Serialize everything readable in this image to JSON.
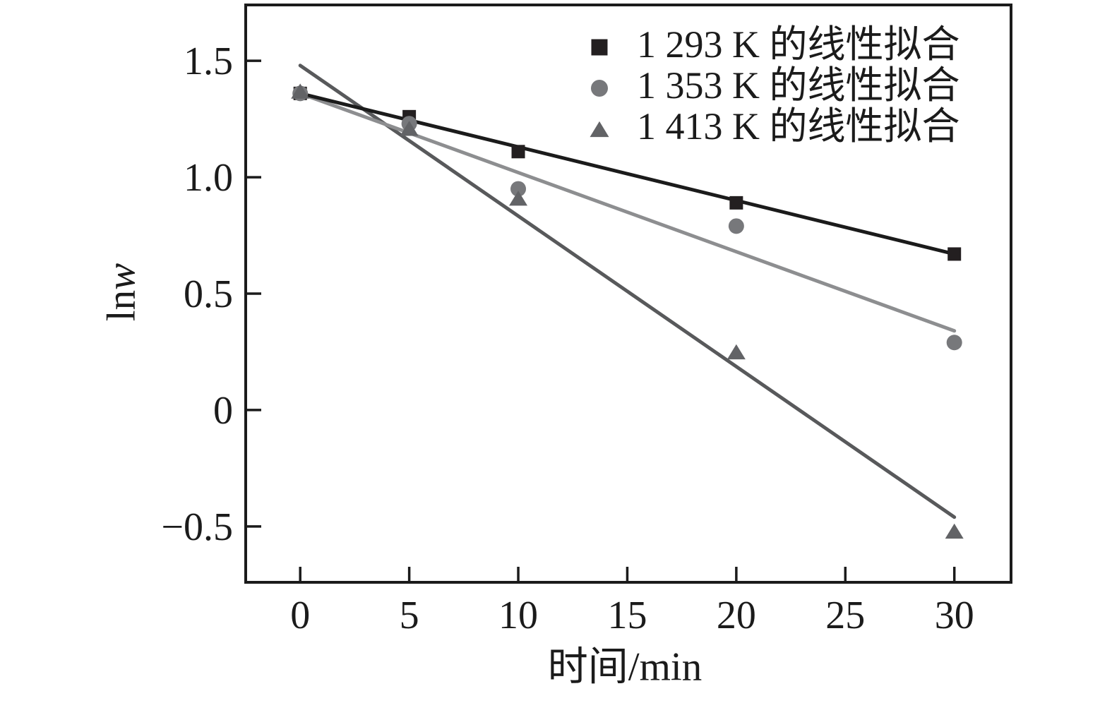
{
  "chart_data": {
    "type": "scatter",
    "title": "",
    "xlabel": "时间/min",
    "ylabel": "lnw",
    "ylabel_parts": {
      "regular": "ln",
      "italic": "w"
    },
    "xlim": [
      -2.5,
      32.6
    ],
    "ylim": [
      -0.74,
      1.74
    ],
    "x_ticks": [
      0,
      5,
      10,
      15,
      20,
      25,
      30
    ],
    "x_tick_labels": [
      "0",
      "5",
      "10",
      "15",
      "20",
      "25",
      "30"
    ],
    "y_ticks": [
      1.5,
      1.0,
      0.5,
      0,
      -0.5
    ],
    "y_tick_labels": [
      "1.5",
      "1.0",
      "0.5",
      "0",
      "−0.5"
    ],
    "grid": false,
    "legend_position": "top-right-inside",
    "axis_color": "#1b1b1b",
    "background": "#ffffff",
    "series": [
      {
        "key": "1293K",
        "name": "1 293 K 的线性拟合",
        "marker": "square",
        "marker_color": "#231f20",
        "line_color": "#1b1b1b",
        "x": [
          0,
          5,
          10,
          20,
          30
        ],
        "y": [
          1.36,
          1.26,
          1.11,
          0.89,
          0.67
        ],
        "fit_line": {
          "x": [
            0,
            30
          ],
          "y": [
            1.36,
            0.67
          ]
        }
      },
      {
        "key": "1353K",
        "name": "1 353 K 的线性拟合",
        "marker": "circle",
        "marker_color": "#77787b",
        "line_color": "#8d8e90",
        "x": [
          0,
          5,
          10,
          20,
          30
        ],
        "y": [
          1.36,
          1.23,
          0.95,
          0.79,
          0.29
        ],
        "fit_line": {
          "x": [
            0,
            30
          ],
          "y": [
            1.36,
            0.34
          ]
        }
      },
      {
        "key": "1413K",
        "name": "1 413 K 的线性拟合",
        "marker": "triangle",
        "marker_color": "#626366",
        "line_color": "#58595b",
        "x": [
          0,
          5,
          10,
          20,
          30
        ],
        "y": [
          1.37,
          1.21,
          0.91,
          0.25,
          -0.52
        ],
        "fit_line": {
          "x": [
            0,
            30
          ],
          "y": [
            1.48,
            -0.46
          ]
        }
      }
    ]
  }
}
